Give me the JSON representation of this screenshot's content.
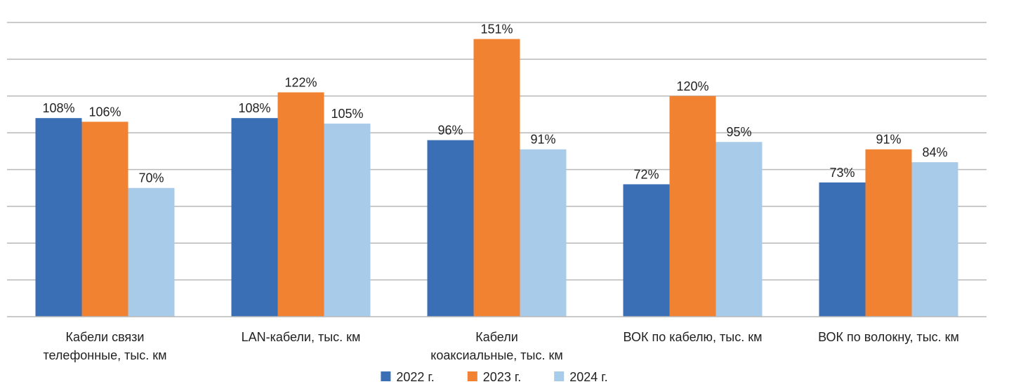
{
  "chart_data": {
    "type": "bar",
    "categories": [
      [
        "Кабели связи",
        "телефонные, тыс. км"
      ],
      [
        "LAN-кабели, тыс. км"
      ],
      [
        "Кабели",
        "коаксиальные, тыс. км"
      ],
      [
        "ВОК по кабелю, тыс. км"
      ],
      [
        "ВОК по волокну, тыс. км"
      ]
    ],
    "series": [
      {
        "name": "2022 г.",
        "color": "#3a6fb6",
        "values": [
          108,
          108,
          96,
          72,
          73
        ],
        "labels": [
          "108%",
          "108%",
          "96%",
          "72%",
          "73%"
        ]
      },
      {
        "name": "2023 г.",
        "color": "#f08232",
        "values": [
          106,
          122,
          151,
          120,
          91
        ],
        "labels": [
          "106%",
          "122%",
          "151%",
          "120%",
          "91%"
        ]
      },
      {
        "name": "2024 г.",
        "color": "#a9cbea",
        "values": [
          70,
          105,
          91,
          95,
          84
        ],
        "labels": [
          "70%",
          "105%",
          "91%",
          "95%",
          "84%"
        ]
      }
    ],
    "ylim": [
      0,
      160
    ],
    "grid": true,
    "gridline_color": "#b8b8b8",
    "legend_placement": "bottom-center",
    "title": "",
    "xlabel": "",
    "ylabel": ""
  }
}
